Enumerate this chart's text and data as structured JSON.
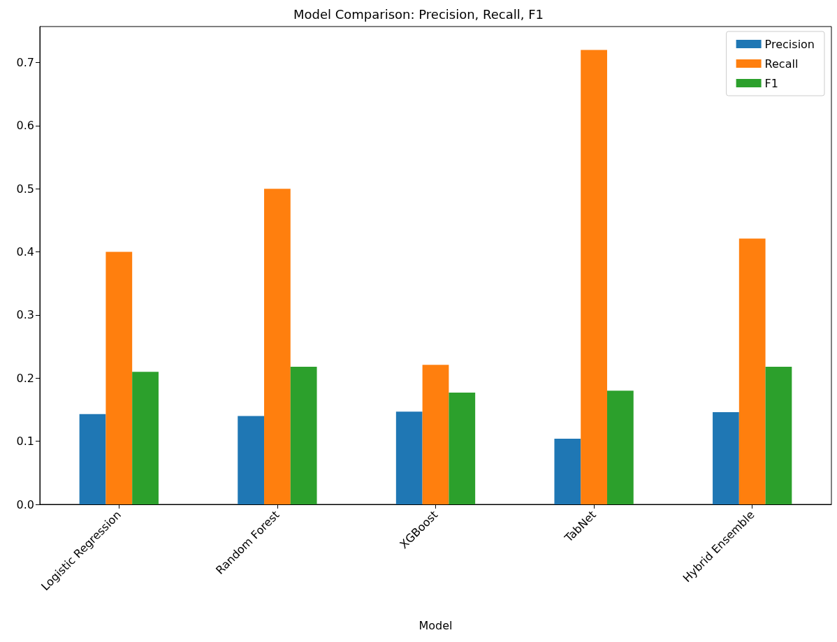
{
  "chart_data": {
    "type": "bar",
    "title": "Model Comparison: Precision, Recall, F1",
    "xlabel": "Model",
    "categories": [
      "Logistic Regression",
      "Random Forest",
      "XGBoost",
      "TabNet",
      "Hybrid Ensemble"
    ],
    "series": [
      {
        "name": "Precision",
        "color": "#1f77b4",
        "values": [
          0.143,
          0.14,
          0.147,
          0.104,
          0.146
        ]
      },
      {
        "name": "Recall",
        "color": "#ff7f0e",
        "values": [
          0.4,
          0.5,
          0.221,
          0.72,
          0.421
        ]
      },
      {
        "name": "F1",
        "color": "#2ca02c",
        "values": [
          0.21,
          0.218,
          0.177,
          0.18,
          0.218
        ]
      }
    ],
    "ylim": [
      0,
      0.757
    ],
    "yticks": [
      {
        "value": 0,
        "label": "0.0"
      },
      {
        "value": 0.1,
        "label": "0.1"
      },
      {
        "value": 0.2,
        "label": "0.2"
      },
      {
        "value": 0.3,
        "label": "0.3"
      },
      {
        "value": 0.4,
        "label": "0.4"
      },
      {
        "value": 0.5,
        "label": "0.5"
      },
      {
        "value": 0.6,
        "label": "0.6"
      },
      {
        "value": 0.7,
        "label": "0.7"
      }
    ],
    "grid": false,
    "legend": "top right"
  }
}
